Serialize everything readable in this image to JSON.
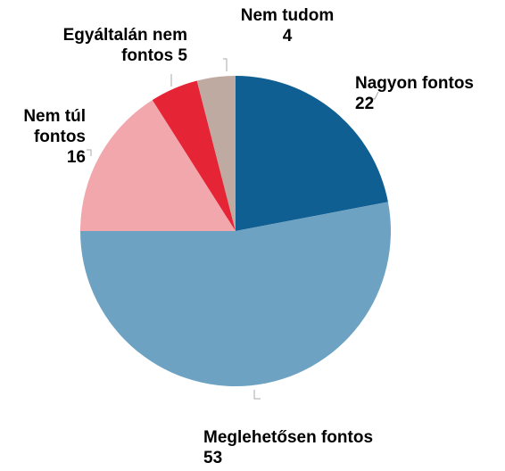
{
  "chart_data": {
    "type": "pie",
    "categories": [
      "Nagyon fontos",
      "Meglehetősen fontos",
      "Nem túl fontos",
      "Egyáltalán nem fontos",
      "Nem tudom"
    ],
    "values": [
      22,
      53,
      16,
      5,
      4
    ],
    "colors": [
      "#0f5f93",
      "#6ea2c2",
      "#f2a7ad",
      "#e52536",
      "#bfaaa1"
    ]
  }
}
